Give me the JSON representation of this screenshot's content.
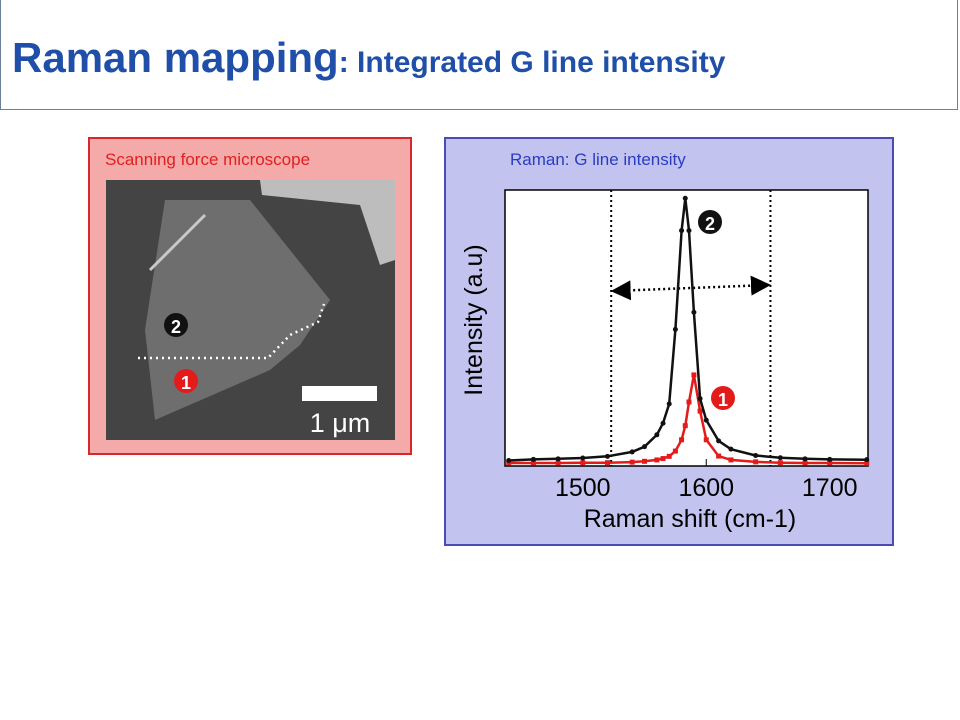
{
  "header": {
    "title": "Raman mapping",
    "subtitle": ": Integrated G line intensity"
  },
  "left_panel": {
    "title": "Scanning force microscope",
    "scale_label": "1 μm",
    "markers": [
      "1",
      "2"
    ]
  },
  "right_panel": {
    "title": "Raman: G line intensity"
  },
  "chart_data": {
    "type": "line",
    "x_label": "Raman shift (cm-1)",
    "y_label": "Intensity (a.u)",
    "x": [
      1440,
      1460,
      1480,
      1500,
      1520,
      1540,
      1550,
      1560,
      1565,
      1570,
      1575,
      1580,
      1583,
      1586,
      1590,
      1595,
      1600,
      1610,
      1620,
      1640,
      1660,
      1680,
      1700,
      1730
    ],
    "series": [
      {
        "name": "2",
        "color": "#111111",
        "values": [
          0.02,
          0.024,
          0.026,
          0.029,
          0.035,
          0.051,
          0.07,
          0.113,
          0.155,
          0.225,
          0.495,
          0.853,
          0.97,
          0.853,
          0.557,
          0.244,
          0.166,
          0.091,
          0.061,
          0.038,
          0.03,
          0.026,
          0.024,
          0.023
        ]
      },
      {
        "name": "1",
        "color": "#e31b1b",
        "values": [
          0.011,
          0.011,
          0.011,
          0.012,
          0.012,
          0.014,
          0.017,
          0.022,
          0.027,
          0.035,
          0.054,
          0.095,
          0.146,
          0.232,
          0.33,
          0.199,
          0.095,
          0.036,
          0.022,
          0.015,
          0.012,
          0.011,
          0.011,
          0.01
        ]
      }
    ],
    "integration_range": [
      1523,
      1652
    ],
    "xlim": [
      1437,
      1731
    ],
    "xticks": [
      1500,
      1600,
      1700
    ],
    "ylim": [
      0,
      1
    ]
  }
}
